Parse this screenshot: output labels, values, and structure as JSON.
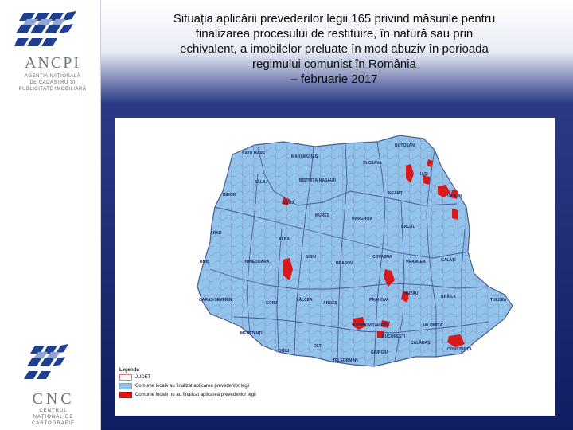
{
  "title_lines": [
    "Situația aplicării prevederilor legii 165 privind măsurile pentru",
    "finalizarea procesului de restituire, în natură sau prin",
    "echivalent, a imobilelor preluate în mod abuziv în perioada",
    "regimului comunist în România",
    "– februarie 2017"
  ],
  "logo_top": {
    "name": "ANCPI",
    "subtitle_lines": [
      "AGENȚIA NAȚIONALĂ",
      "DE CADASTRU ȘI",
      "PUBLICITATE IMOBILIARĂ"
    ]
  },
  "logo_bottom": {
    "name": "CNC",
    "subtitle_lines": [
      "CENTRUL",
      "NAȚIONAL DE",
      "CARTOGRAFIE"
    ]
  },
  "legend": {
    "title": "Legenda",
    "items": [
      {
        "label": "JUDET",
        "color": "#ffffff",
        "border": "#e07a7a"
      },
      {
        "label": "Comunie locale au finalizat aplicarea prevederilor legii",
        "color": "#92c3ea",
        "border": "#7aa9d6"
      },
      {
        "label": "Comunie locale nu au finalizat aplicarea prevederilor legii",
        "color": "#d7191c",
        "border": "#b01515"
      }
    ]
  },
  "counties": [
    "SATU MARE",
    "MARAMUREȘ",
    "SUCEAVA",
    "BOTOȘANI",
    "SĂLAJ",
    "BISTRIȚA-NĂSĂUD",
    "NEAMȚ",
    "IAȘI",
    "BIHOR",
    "CLUJ",
    "VASLUI",
    "MUREȘ",
    "HARGHITA",
    "BACĂU",
    "ARAD",
    "ALBA",
    "COVASNA",
    "VRANCEA",
    "GALAȚI",
    "TIMIȘ",
    "HUNEDOARA",
    "SIBIU",
    "BRAȘOV",
    "BUZĂU",
    "BRĂILA",
    "TULCEA",
    "CARAȘ-SEVERIN",
    "GORJ",
    "VÂLCEA",
    "ARGEȘ",
    "PRAHOVA",
    "IALOMIȚA",
    "MEHEDINȚI",
    "DÂMBOVIȚA",
    "ILFOV",
    "CONSTANȚA",
    "DOLJ",
    "OLT",
    "GIURGIU",
    "CĂLĂRAȘI",
    "TELEORMAN",
    "BUCUREȘTI"
  ],
  "colors": {
    "finalized": "#92c3ea",
    "not_finalized": "#d7191c",
    "county_border": "#6d7fa6",
    "background_dark": "#0f1e63"
  }
}
